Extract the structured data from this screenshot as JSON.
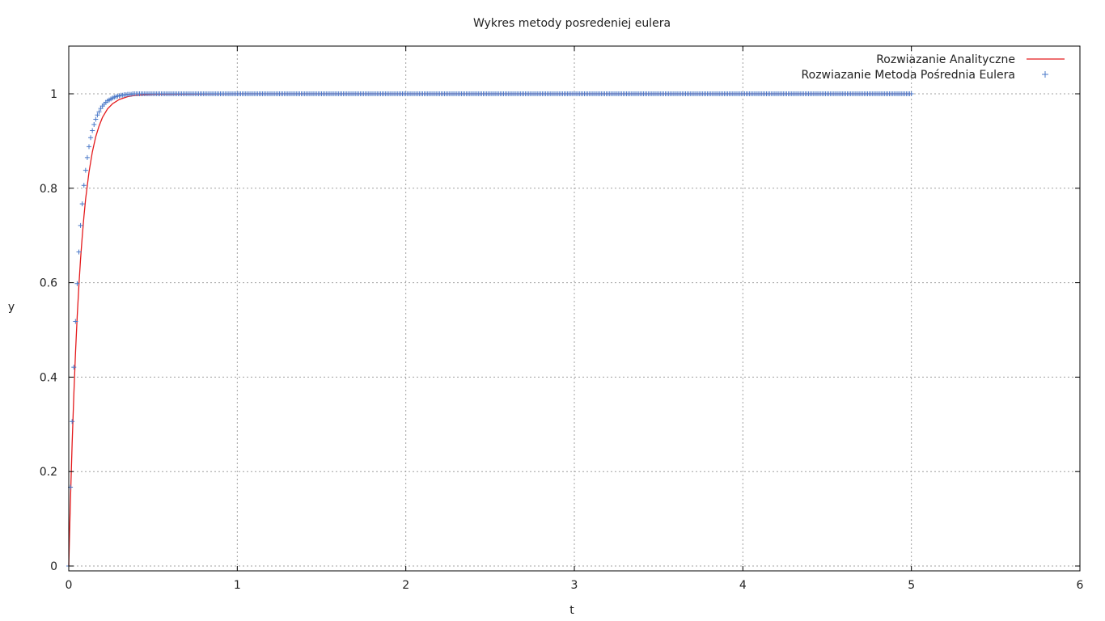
{
  "chart_data": {
    "type": "line",
    "title": "Wykres metody posredeniej eulera",
    "xlabel": "t",
    "ylabel": "y",
    "xlim": [
      0,
      6
    ],
    "ylim": [
      0,
      1.1
    ],
    "x_ticks": [
      "0",
      "1",
      "2",
      "3",
      "4",
      "5",
      "6"
    ],
    "y_ticks": [
      "0",
      "0.2",
      "0.4",
      "0.6",
      "0.8",
      "1"
    ],
    "grid": true,
    "legend_position": "top-right",
    "series": [
      {
        "name": "Rozwiazanie Analityczne",
        "style": "line",
        "color": "#e41a1c",
        "x": [
          0,
          0.005,
          0.01,
          0.02,
          0.03,
          0.04,
          0.05,
          0.06,
          0.07,
          0.08,
          0.09,
          0.1,
          0.12,
          0.14,
          0.16,
          0.18,
          0.2,
          0.23,
          0.26,
          0.3,
          0.35,
          0.4,
          0.5,
          1,
          2,
          3,
          4,
          5
        ],
        "y": [
          0,
          0.072,
          0.139,
          0.259,
          0.362,
          0.451,
          0.528,
          0.593,
          0.65,
          0.698,
          0.74,
          0.777,
          0.834,
          0.877,
          0.909,
          0.932,
          0.95,
          0.968,
          0.979,
          0.988,
          0.994,
          0.997,
          0.999,
          1,
          1,
          1,
          1,
          1
        ]
      },
      {
        "name": "Rozwiazanie Metoda Pośrednia Eulera",
        "style": "points",
        "marker": "+",
        "color": "#4a78c8",
        "x_start": 0,
        "x_end": 5,
        "x_step": 0.01,
        "leading_y": [
          0,
          0.167,
          0.306,
          0.421,
          0.518,
          0.598,
          0.665,
          0.721,
          0.767,
          0.806,
          0.838,
          0.865,
          0.888,
          0.907,
          0.922,
          0.935,
          0.946,
          0.955,
          0.962,
          0.969,
          0.974,
          0.978,
          0.982,
          0.985,
          0.987,
          0.989,
          0.991,
          0.993,
          0.994,
          0.995,
          0.996,
          0.997,
          0.997,
          0.998,
          0.998,
          0.999,
          0.999,
          0.999,
          1
        ],
        "tail_y": 1
      }
    ]
  }
}
